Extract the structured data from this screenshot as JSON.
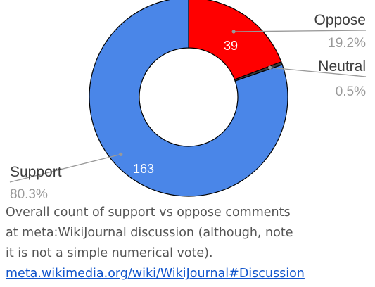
{
  "chart_data": {
    "type": "pie",
    "donut": true,
    "slices": [
      {
        "label": "Oppose",
        "value": 39,
        "value_label": "39",
        "percent": "19.2%",
        "color": "#ff0000"
      },
      {
        "label": "Neutral",
        "value": 1,
        "value_label": "",
        "percent": "0.5%",
        "color": "#3c3c3c"
      },
      {
        "label": "Support",
        "value": 163,
        "value_label": "163",
        "percent": "80.3%",
        "color": "#4a86e8"
      }
    ],
    "leader_line_color": "#999999",
    "label_color": "#3c3c3c",
    "percent_color": "#999999"
  },
  "caption": {
    "lines": [
      "Overall count of support vs oppose comments",
      "at meta:WikiJournal discussion (although, note",
      "it is not a simple numerical vote)."
    ],
    "link_text": "meta.wikimedia.org/wiki/WikiJournal#Discussion"
  }
}
